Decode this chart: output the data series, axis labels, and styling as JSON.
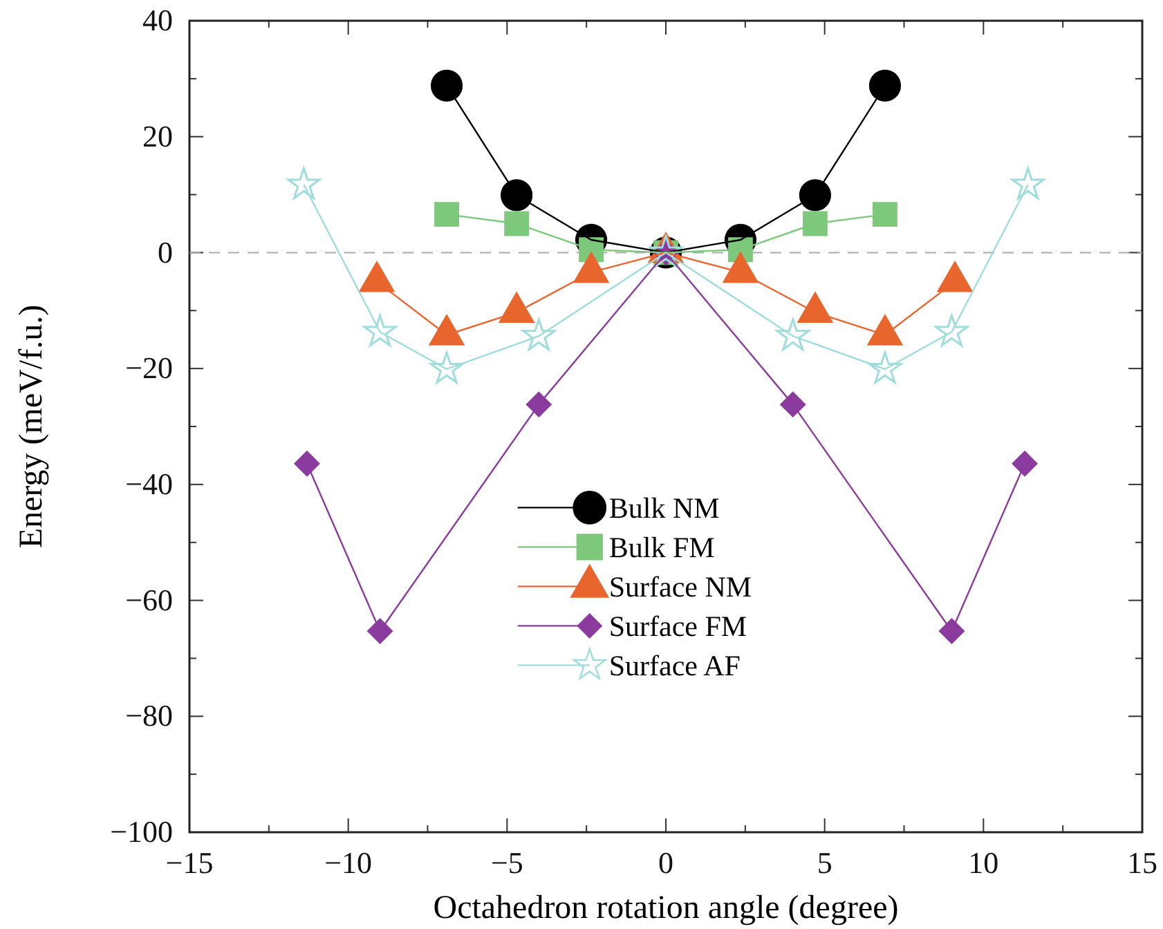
{
  "chart_data": {
    "type": "line",
    "xlabel": "Octahedron rotation angle (degree)",
    "ylabel": "Energy (meV/f.u.)",
    "xlim": [
      -15,
      15
    ],
    "ylim": [
      -100,
      40
    ],
    "xticks": [
      -15,
      {
        "value": -12.5,
        "label": null
      },
      -10,
      {
        "value": -7.5,
        "label": null
      },
      -5,
      {
        "value": -2.5,
        "label": null
      },
      0,
      {
        "value": 2.5,
        "label": null
      },
      5,
      {
        "value": 7.5,
        "label": null
      },
      10,
      {
        "value": 12.5,
        "label": null
      },
      15
    ],
    "yticks": [
      -100,
      {
        "value": -90,
        "label": null
      },
      -80,
      {
        "value": -70,
        "label": null
      },
      -60,
      {
        "value": -50,
        "label": null
      },
      -40,
      {
        "value": -30,
        "label": null
      },
      -20,
      {
        "value": -10,
        "label": null
      },
      0,
      {
        "value": 10,
        "label": null
      },
      20,
      {
        "value": 30,
        "label": null
      },
      40
    ],
    "legend": "center",
    "grid": false,
    "ref_lines": [
      {
        "axis": "y",
        "value": 0,
        "color": "#aaaaaa",
        "line_style": "dashed"
      }
    ],
    "series": [
      {
        "name": "Bulk NM",
        "color": "#000000",
        "marker": "circle",
        "x": [
          -6.9,
          -4.7,
          -2.35,
          0,
          2.35,
          4.7,
          6.9
        ],
        "values": [
          28.8,
          9.9,
          2.2,
          0,
          2.2,
          9.9,
          28.8
        ]
      },
      {
        "name": "Bulk FM",
        "color": "#7dc87a",
        "marker": "square",
        "x": [
          -6.9,
          -4.7,
          -2.35,
          0,
          2.35,
          4.7,
          6.9
        ],
        "values": [
          6.6,
          5.0,
          0.5,
          0,
          0.5,
          5.0,
          6.6
        ]
      },
      {
        "name": "Surface NM",
        "color": "#e8652e",
        "marker": "triangle",
        "x": [
          -9.1,
          -6.9,
          -4.7,
          -2.35,
          0,
          2.35,
          4.7,
          6.9,
          9.1
        ],
        "values": [
          -5.0,
          -14.2,
          -10.3,
          -3.4,
          0,
          -3.4,
          -10.3,
          -14.2,
          -5.0
        ]
      },
      {
        "name": "Surface FM",
        "color": "#8b3a9e",
        "marker": "diamond",
        "x": [
          -11.3,
          -9.0,
          -4.0,
          0,
          4.0,
          9.0,
          11.3
        ],
        "values": [
          -36.4,
          -65.3,
          -26.2,
          0,
          -26.2,
          -65.3,
          -36.4
        ]
      },
      {
        "name": "Surface AF",
        "color": "#9fdcdc",
        "marker": "star",
        "x": [
          -11.4,
          -9.0,
          -6.9,
          -4.0,
          0,
          4.0,
          6.9,
          9.0,
          11.4
        ],
        "values": [
          11.7,
          -13.7,
          -20.1,
          -14.4,
          0,
          -14.4,
          -20.1,
          -13.7,
          11.7
        ]
      }
    ]
  }
}
